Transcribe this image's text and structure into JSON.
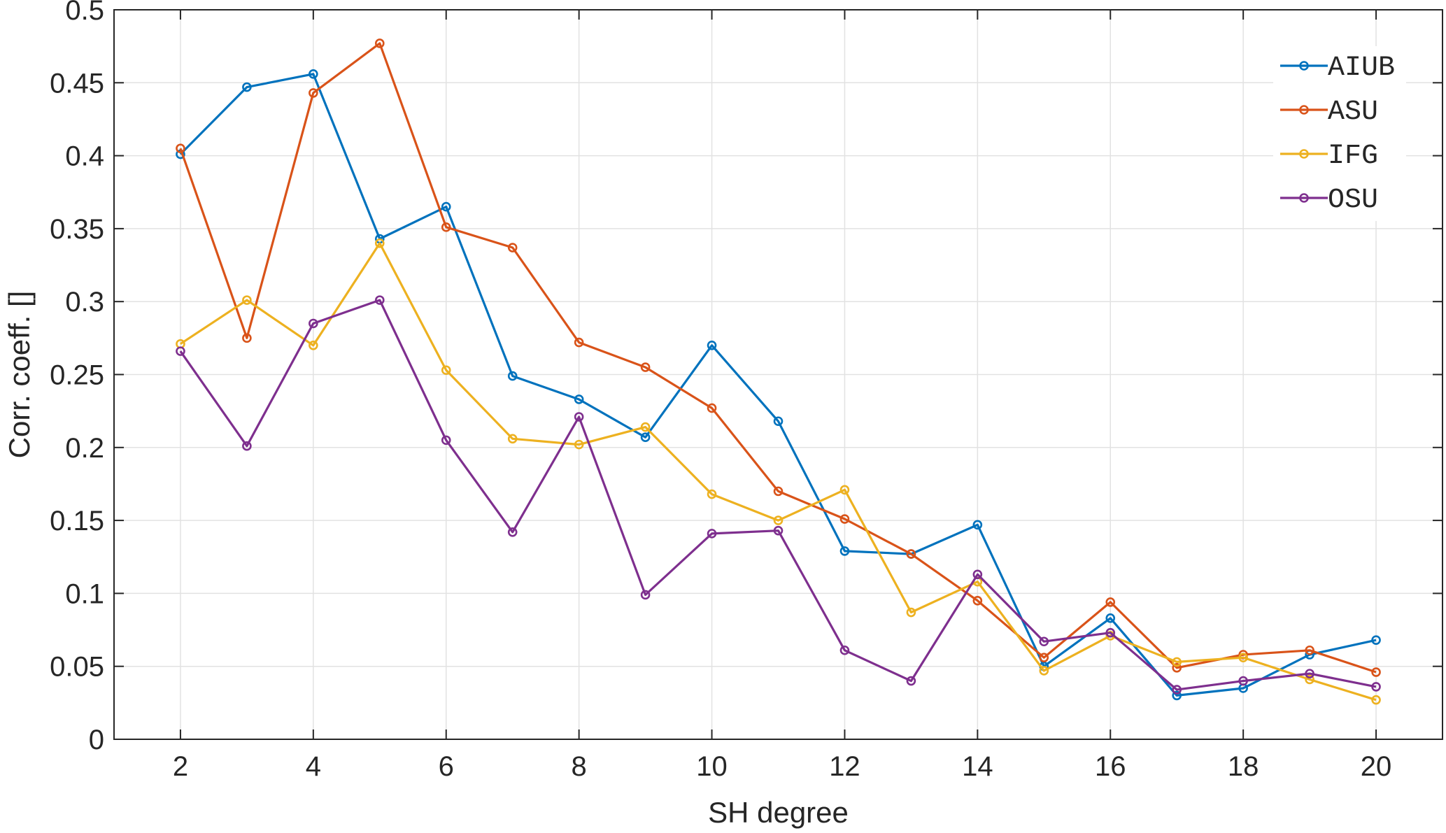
{
  "chart_data": {
    "type": "line",
    "title": "",
    "xlabel": "SH degree",
    "ylabel": "Corr. coeff. []",
    "xlim": [
      1,
      21
    ],
    "ylim": [
      0,
      0.5
    ],
    "xticks": [
      2,
      4,
      6,
      8,
      10,
      12,
      14,
      16,
      18,
      20
    ],
    "yticks": [
      0,
      0.05,
      0.1,
      0.15,
      0.2,
      0.25,
      0.3,
      0.35,
      0.4,
      0.45,
      0.5
    ],
    "xtick_labels": [
      "2",
      "4",
      "6",
      "8",
      "10",
      "12",
      "14",
      "16",
      "18",
      "20"
    ],
    "ytick_labels": [
      "0",
      "0.05",
      "0.1",
      "0.15",
      "0.2",
      "0.25",
      "0.3",
      "0.35",
      "0.4",
      "0.45",
      "0.5"
    ],
    "grid": true,
    "legend_position": "top-right",
    "x": [
      2,
      3,
      4,
      5,
      6,
      7,
      8,
      9,
      10,
      11,
      12,
      13,
      14,
      15,
      16,
      17,
      18,
      19,
      20
    ],
    "series": [
      {
        "name": "AIUB",
        "color": "#0072BD",
        "values": [
          0.401,
          0.447,
          0.456,
          0.343,
          0.365,
          0.249,
          0.233,
          0.207,
          0.27,
          0.218,
          0.129,
          0.127,
          0.147,
          0.05,
          0.083,
          0.03,
          0.035,
          0.058,
          0.068
        ]
      },
      {
        "name": "ASU",
        "color": "#D95319",
        "values": [
          0.405,
          0.275,
          0.443,
          0.477,
          0.351,
          0.337,
          0.272,
          0.255,
          0.227,
          0.17,
          0.151,
          0.127,
          0.095,
          0.056,
          0.094,
          0.049,
          0.058,
          0.061,
          0.046
        ]
      },
      {
        "name": "IFG",
        "color": "#EDB120",
        "values": [
          0.271,
          0.301,
          0.27,
          0.34,
          0.253,
          0.206,
          0.202,
          0.214,
          0.168,
          0.15,
          0.171,
          0.087,
          0.108,
          0.047,
          0.071,
          0.053,
          0.056,
          0.041,
          0.027
        ]
      },
      {
        "name": "OSU",
        "color": "#7E2F8E",
        "values": [
          0.266,
          0.201,
          0.285,
          0.301,
          0.205,
          0.142,
          0.221,
          0.099,
          0.141,
          0.143,
          0.061,
          0.04,
          0.113,
          0.067,
          0.073,
          0.034,
          0.04,
          0.045,
          0.036
        ]
      }
    ]
  }
}
